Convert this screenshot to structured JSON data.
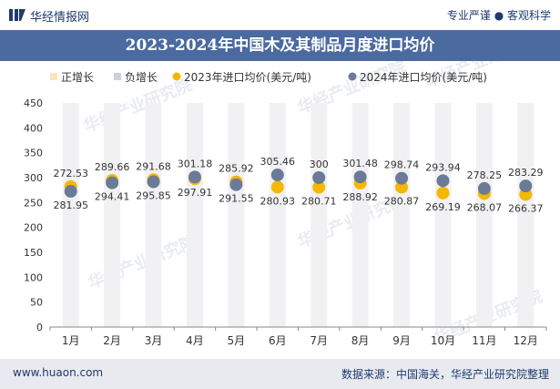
{
  "header": {
    "brand": "华经情报网",
    "tagline": "专业严谨 ● 客观科学"
  },
  "footer": {
    "url": "www.huaon.com",
    "source": "数据来源：中国海关，华经产业研究院整理"
  },
  "watermark": "华经产业研究院",
  "colors": {
    "title_bar": "#4a6aa0",
    "series_2023": "#f5b800",
    "series_2024": "#6b7a99",
    "column": "#f1f1f3",
    "axis_text": "#333333"
  },
  "chart_data": {
    "type": "scatter",
    "title": "2023-2024年中国木及其制品月度进口均价",
    "categories": [
      "1月",
      "2月",
      "3月",
      "4月",
      "5月",
      "6月",
      "7月",
      "8月",
      "9月",
      "10月",
      "11月",
      "12月"
    ],
    "legend": [
      "正增长",
      "负增长",
      "2023年进口均价(美元/吨)",
      "2024年进口均价(美元/吨)"
    ],
    "legend_position": "top",
    "series": [
      {
        "name": "2023年进口均价(美元/吨)",
        "values": [
          281.95,
          294.41,
          295.85,
          297.91,
          291.55,
          280.93,
          280.71,
          288.92,
          280.87,
          269.19,
          268.07,
          266.37
        ]
      },
      {
        "name": "2024年进口均价(美元/吨)",
        "values": [
          272.53,
          289.66,
          291.68,
          301.18,
          285.92,
          305.46,
          300,
          301.48,
          298.74,
          293.94,
          278.25,
          283.29
        ]
      }
    ],
    "data_labels": {
      "2023": [
        "281.95",
        "294.41",
        "295.85",
        "297.91",
        "291.55",
        "280.93",
        "280.71",
        "288.92",
        "280.87",
        "269.19",
        "268.07",
        "266.37"
      ],
      "2024": [
        "272.53",
        "289.66",
        "291.68",
        "301.18",
        "285.92",
        "305.46",
        "300",
        "301.48",
        "298.74",
        "293.94",
        "278.25",
        "283.29"
      ]
    },
    "ylim": [
      0,
      450
    ],
    "yticks": [
      0,
      50,
      100,
      150,
      200,
      250,
      300,
      350,
      400,
      450
    ],
    "grid": false
  }
}
